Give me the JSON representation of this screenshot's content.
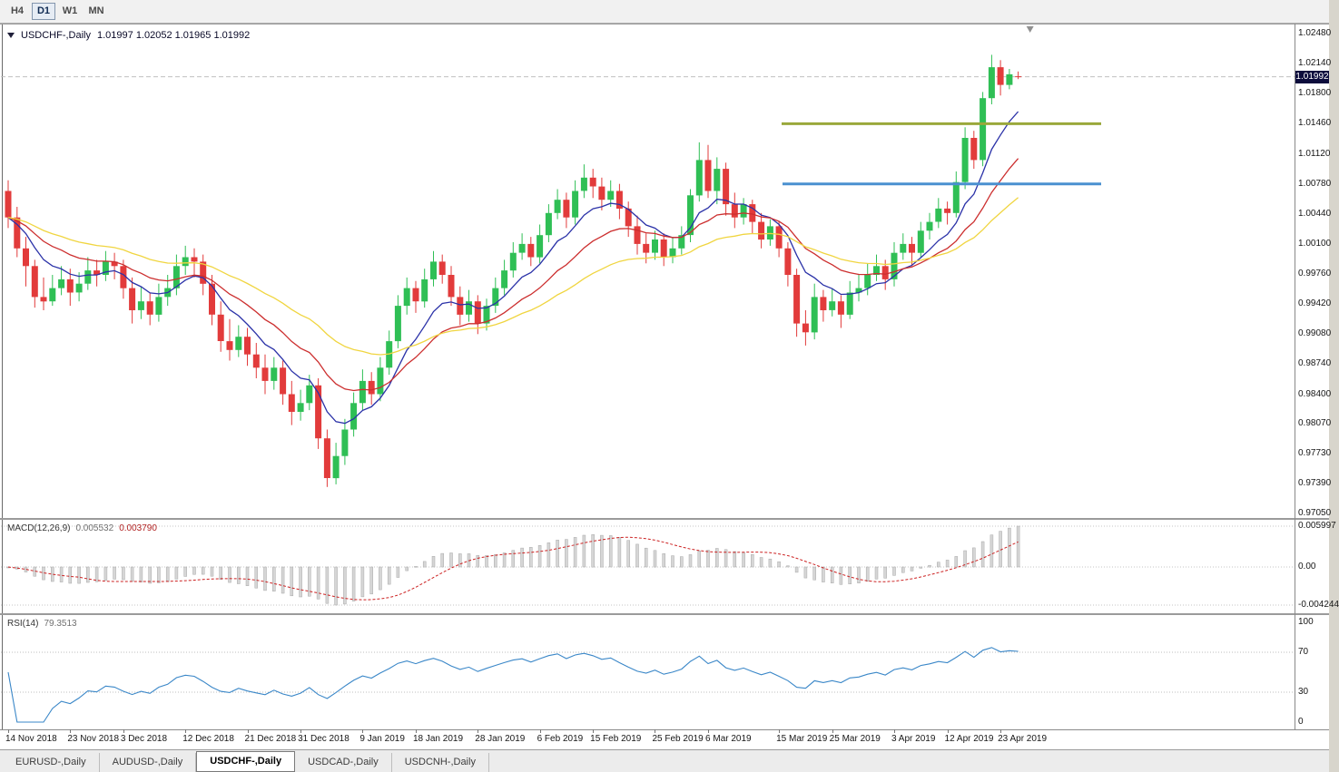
{
  "window": {
    "timeframes": [
      {
        "label": "H4",
        "active": false
      },
      {
        "label": "D1",
        "active": true
      },
      {
        "label": "W1",
        "active": false
      },
      {
        "label": "MN",
        "active": false
      }
    ]
  },
  "chart": {
    "title_symbol": "USDCHF-,Daily",
    "title_ohlc": "1.01997 1.02052 1.01965 1.01992",
    "current_price": "1.01992",
    "price_axis_labels": [
      "1.02480",
      "1.02140",
      "1.01800",
      "1.01460",
      "1.01120",
      "1.00780",
      "1.00440",
      "1.00100",
      "0.99760",
      "0.99420",
      "0.99080",
      "0.98740",
      "0.98400",
      "0.98070",
      "0.97730",
      "0.97390",
      "0.97050"
    ]
  },
  "macd": {
    "label": "MACD(12,26,9)",
    "value_main": "0.005532",
    "value_signal": "0.003790",
    "axis_labels": [
      "0.005997",
      "0.00",
      "-0.004244"
    ]
  },
  "rsi": {
    "label": "RSI(14)",
    "value": "79.3513",
    "axis_labels": [
      "100",
      "70",
      "30",
      "0"
    ]
  },
  "tabs": [
    {
      "label": "EURUSD-,Daily",
      "active": false
    },
    {
      "label": "AUDUSD-,Daily",
      "active": false
    },
    {
      "label": "USDCHF-,Daily",
      "active": true
    },
    {
      "label": "USDCAD-,Daily",
      "active": false
    },
    {
      "label": "USDCNH-,Daily",
      "active": false
    }
  ],
  "chart_data": {
    "type": "candlestick",
    "symbol": "USDCHF",
    "timeframe": "Daily",
    "price_range": {
      "top": 1.02573,
      "bottom": 0.96999
    },
    "bull_color": "#2fbf55",
    "bear_color": "#e23b3b",
    "current_price": 1.01992,
    "candles": {
      "open": [
        1.007,
        1.004,
        1.0005,
        0.9985,
        0.995,
        0.9945,
        0.996,
        0.997,
        0.9955,
        0.9965,
        0.998,
        0.9975,
        0.999,
        0.9985,
        0.996,
        0.9935,
        0.9945,
        0.993,
        0.995,
        0.996,
        0.9985,
        0.9995,
        0.999,
        0.9965,
        0.993,
        0.99,
        0.989,
        0.9905,
        0.9885,
        0.987,
        0.9855,
        0.987,
        0.984,
        0.982,
        0.983,
        0.985,
        0.979,
        0.9745,
        0.977,
        0.98,
        0.983,
        0.9855,
        0.984,
        0.987,
        0.99,
        0.994,
        0.996,
        0.9945,
        0.997,
        0.999,
        0.9975,
        0.995,
        0.993,
        0.9945,
        0.992,
        0.994,
        0.996,
        0.998,
        1.0,
        1.001,
        0.9995,
        1.002,
        1.0045,
        1.006,
        1.004,
        1.007,
        1.0085,
        1.0075,
        1.006,
        1.007,
        1.005,
        1.003,
        1.001,
        1.0,
        1.0015,
        0.9995,
        1.0005,
        1.002,
        1.0065,
        1.0105,
        1.007,
        1.0095,
        1.0055,
        1.004,
        1.0055,
        1.0035,
        1.0015,
        1.003,
        1.0005,
        0.9975,
        0.992,
        0.991,
        0.995,
        0.9935,
        0.9945,
        0.993,
        0.9955,
        0.996,
        0.9975,
        0.9985,
        0.997,
        1.0,
        1.001,
        1.0,
        1.0025,
        1.0035,
        1.005,
        1.0045,
        1.008,
        1.013,
        1.0105,
        1.0175,
        1.021,
        1.019,
        1.01997
      ],
      "high": [
        1.0082,
        1.0052,
        1.0018,
        0.9992,
        0.9972,
        0.9975,
        0.9985,
        0.9982,
        0.9978,
        0.9995,
        0.9992,
        1.0002,
        1.0,
        0.9992,
        0.9972,
        0.9962,
        0.9955,
        0.9965,
        0.9975,
        0.9998,
        1.0008,
        1.0005,
        0.9998,
        0.9975,
        0.9945,
        0.9925,
        0.9918,
        0.9915,
        0.9898,
        0.9885,
        0.9882,
        0.9878,
        0.9855,
        0.9845,
        0.9862,
        0.9858,
        0.98,
        0.9785,
        0.9812,
        0.9842,
        0.9868,
        0.9865,
        0.9882,
        0.9912,
        0.9952,
        0.9972,
        0.9968,
        0.9982,
        1.0002,
        0.9998,
        0.9985,
        0.9962,
        0.9958,
        0.9952,
        0.9948,
        0.9972,
        0.9992,
        1.0012,
        1.0022,
        1.0018,
        1.0032,
        1.0055,
        1.0072,
        1.0068,
        1.0082,
        1.01,
        1.0095,
        1.0085,
        1.0082,
        1.0078,
        1.0058,
        1.0042,
        1.0022,
        1.0025,
        1.0022,
        1.0018,
        1.003,
        1.0072,
        1.0125,
        1.0122,
        1.0108,
        1.0102,
        1.0068,
        1.0062,
        1.006,
        1.0045,
        1.0038,
        1.0035,
        1.0012,
        0.9982,
        0.9935,
        0.9965,
        0.9958,
        0.996,
        0.9952,
        0.9968,
        0.9975,
        0.9988,
        0.9998,
        0.9992,
        1.0012,
        1.0022,
        1.0018,
        1.0035,
        1.0045,
        1.0062,
        1.0058,
        1.0092,
        1.0142,
        1.0138,
        1.0182,
        1.0224,
        1.0218,
        1.0208,
        1.02052
      ],
      "low": [
        1.0028,
        0.9995,
        0.9962,
        0.9938,
        0.9935,
        0.994,
        0.9952,
        0.994,
        0.9945,
        0.9958,
        0.9962,
        0.9968,
        0.997,
        0.9948,
        0.992,
        0.9925,
        0.9918,
        0.9922,
        0.994,
        0.9952,
        0.9975,
        0.9972,
        0.9952,
        0.9918,
        0.9888,
        0.9878,
        0.9882,
        0.9872,
        0.9858,
        0.984,
        0.9845,
        0.9828,
        0.9805,
        0.981,
        0.9822,
        0.9778,
        0.9735,
        0.9738,
        0.976,
        0.9792,
        0.9822,
        0.9828,
        0.9832,
        0.9862,
        0.9892,
        0.993,
        0.9932,
        0.9938,
        0.9962,
        0.9965,
        0.994,
        0.9918,
        0.9922,
        0.9908,
        0.9912,
        0.9932,
        0.9952,
        0.9972,
        0.9992,
        0.9985,
        0.9988,
        1.0012,
        1.0038,
        1.0028,
        1.0032,
        1.0062,
        1.0062,
        1.0048,
        1.0052,
        1.0038,
        1.0018,
        0.9998,
        0.9988,
        0.9992,
        0.9985,
        0.9988,
        0.9998,
        1.0012,
        1.0058,
        1.0062,
        1.0055,
        1.0042,
        1.0028,
        1.0032,
        1.0022,
        1.0005,
        1.0008,
        0.9995,
        0.9962,
        0.9905,
        0.9895,
        0.9902,
        0.9922,
        0.9928,
        0.9915,
        0.9925,
        0.9945,
        0.9952,
        0.9968,
        0.9958,
        0.9962,
        0.9992,
        0.9985,
        0.9995,
        1.0015,
        1.0028,
        1.0032,
        1.004,
        1.0072,
        1.0095,
        1.0098,
        1.0168,
        1.0178,
        1.0185,
        1.01965
      ],
      "close": [
        1.004,
        1.0005,
        0.9985,
        0.995,
        0.9945,
        0.996,
        0.997,
        0.9955,
        0.9965,
        0.998,
        0.9975,
        0.999,
        0.9985,
        0.996,
        0.9935,
        0.9945,
        0.993,
        0.995,
        0.996,
        0.9985,
        0.9995,
        0.999,
        0.9965,
        0.993,
        0.99,
        0.989,
        0.9905,
        0.9885,
        0.987,
        0.9855,
        0.987,
        0.984,
        0.982,
        0.983,
        0.985,
        0.979,
        0.9745,
        0.977,
        0.98,
        0.983,
        0.9855,
        0.984,
        0.987,
        0.99,
        0.994,
        0.996,
        0.9945,
        0.997,
        0.999,
        0.9975,
        0.995,
        0.993,
        0.9945,
        0.992,
        0.994,
        0.996,
        0.998,
        1.0,
        1.001,
        0.9995,
        1.002,
        1.0045,
        1.006,
        1.004,
        1.007,
        1.0085,
        1.0075,
        1.006,
        1.007,
        1.005,
        1.003,
        1.001,
        1.0,
        1.0015,
        0.9995,
        1.0005,
        1.002,
        1.0065,
        1.0105,
        1.007,
        1.0095,
        1.0055,
        1.004,
        1.0055,
        1.0035,
        1.0015,
        1.003,
        1.0005,
        0.9975,
        0.992,
        0.991,
        0.995,
        0.9935,
        0.9945,
        0.993,
        0.9955,
        0.996,
        0.9975,
        0.9985,
        0.997,
        1.0,
        1.001,
        1.0,
        1.0025,
        1.0035,
        1.005,
        1.0045,
        1.008,
        1.013,
        1.0105,
        1.0175,
        1.021,
        1.019,
        1.0202,
        1.01992
      ]
    },
    "date_labels": [
      {
        "text": "14 Nov 2018",
        "index": 0
      },
      {
        "text": "23 Nov 2018",
        "index": 7
      },
      {
        "text": "3 Dec 2018",
        "index": 13
      },
      {
        "text": "12 Dec 2018",
        "index": 20
      },
      {
        "text": "21 Dec 2018",
        "index": 27
      },
      {
        "text": "31 Dec 2018",
        "index": 33
      },
      {
        "text": "9 Jan 2019",
        "index": 40
      },
      {
        "text": "18 Jan 2019",
        "index": 46
      },
      {
        "text": "28 Jan 2019",
        "index": 53
      },
      {
        "text": "6 Feb 2019",
        "index": 60
      },
      {
        "text": "15 Feb 2019",
        "index": 66
      },
      {
        "text": "25 Feb 2019",
        "index": 73
      },
      {
        "text": "6 Mar 2019",
        "index": 79
      },
      {
        "text": "15 Mar 2019",
        "index": 87
      },
      {
        "text": "25 Mar 2019",
        "index": 93
      },
      {
        "text": "3 Apr 2019",
        "index": 100
      },
      {
        "text": "12 Apr 2019",
        "index": 106
      },
      {
        "text": "23 Apr 2019",
        "index": 112
      }
    ],
    "overlays": [
      {
        "type": "ema",
        "period": 8,
        "color": "#2b32a8"
      },
      {
        "type": "ema",
        "period": 17,
        "color": "#cc2e2e"
      },
      {
        "type": "ema",
        "period": 34,
        "color": "#f0d540"
      }
    ],
    "hlines": [
      {
        "price": 1.0146,
        "color": "#9aa83b",
        "x1_frac": 0.603,
        "x2_frac": 0.85,
        "width": 3
      },
      {
        "price": 1.0078,
        "color": "#4a90d0",
        "x1_frac": 0.604,
        "x2_frac": 0.85,
        "width": 3
      }
    ],
    "macd": {
      "fast": 12,
      "slow": 26,
      "signal": 9,
      "hist_color": "#d6d6d6",
      "signal_color": "#cc2222"
    },
    "rsi": {
      "period": 14,
      "color": "#3a87c8",
      "levels": [
        70,
        30
      ]
    },
    "shift_marker_frac": 0.795
  }
}
